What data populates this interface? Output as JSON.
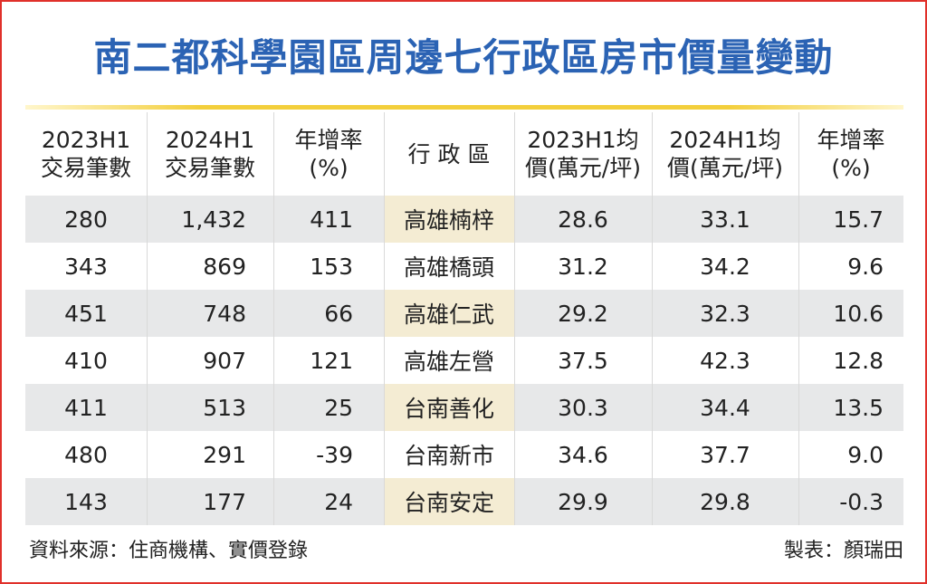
{
  "title": "南二都科學園區周邊七行政區房市價量變動",
  "table": {
    "columns": [
      [
        "2023H1",
        "交易筆數"
      ],
      [
        "2024H1",
        "交易筆數"
      ],
      [
        "年增率",
        "(%)"
      ],
      [
        "行 政 區"
      ],
      [
        "2023H1均",
        "價(萬元/坪)"
      ],
      [
        "2024H1均",
        "價(萬元/坪)"
      ],
      [
        "年增率",
        "(%)"
      ]
    ],
    "rows": [
      [
        "280",
        "1,432",
        "411",
        "高雄楠梓",
        "28.6",
        "33.1",
        "15.7"
      ],
      [
        "343",
        "869",
        "153",
        "高雄橋頭",
        "31.2",
        "34.2",
        "9.6"
      ],
      [
        "451",
        "748",
        "66",
        "高雄仁武",
        "29.2",
        "32.3",
        "10.6"
      ],
      [
        "410",
        "907",
        "121",
        "高雄左營",
        "37.5",
        "42.3",
        "12.8"
      ],
      [
        "411",
        "513",
        "25",
        "台南善化",
        "30.3",
        "34.4",
        "13.5"
      ],
      [
        "480",
        "291",
        "-39",
        "台南新市",
        "34.6",
        "37.7",
        "9.0"
      ],
      [
        "143",
        "177",
        "24",
        "台南安定",
        "29.9",
        "29.8",
        "-0.3"
      ]
    ]
  },
  "footer": {
    "source": "資料來源：住商機構、實價登錄",
    "author": "製表：顏瑞田"
  }
}
